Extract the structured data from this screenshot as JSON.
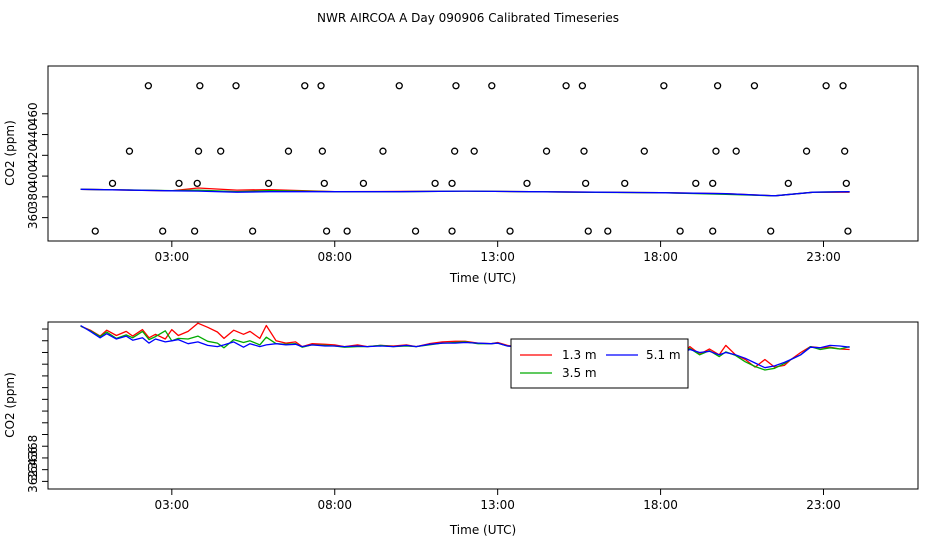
{
  "title": "NWR AIRCOA A  Day 090906  Calibrated Timeseries",
  "chart_data": [
    {
      "type": "scatter+line",
      "xlabel": "Time (UTC)",
      "ylabel": "CO2 (ppm)",
      "xlim": [
        -0.8,
        25.9
      ],
      "ylim": [
        337.5,
        506
      ],
      "x_ticks": [
        3,
        8,
        13,
        18,
        23
      ],
      "x_tick_labels": [
        "03:00",
        "08:00",
        "13:00",
        "18:00",
        "23:00"
      ],
      "y_ticks": [
        360,
        380,
        400,
        420,
        440,
        460
      ],
      "y_tick_labels": [
        "360",
        "",
        "400",
        "",
        "440",
        ""
      ],
      "y_tick_labels_b": [
        "",
        "380",
        "",
        "420",
        "",
        "460"
      ],
      "points": [
        [
          0.65,
          347
        ],
        [
          1.18,
          393
        ],
        [
          1.7,
          424
        ],
        [
          2.28,
          487
        ],
        [
          2.72,
          347
        ],
        [
          3.22,
          393
        ],
        [
          3.7,
          347
        ],
        [
          3.78,
          393
        ],
        [
          3.82,
          424
        ],
        [
          3.86,
          487
        ],
        [
          4.5,
          424
        ],
        [
          4.97,
          487
        ],
        [
          5.48,
          347
        ],
        [
          5.97,
          393
        ],
        [
          6.58,
          424
        ],
        [
          7.08,
          487
        ],
        [
          7.58,
          487
        ],
        [
          7.62,
          424
        ],
        [
          7.68,
          393
        ],
        [
          7.75,
          347
        ],
        [
          8.38,
          347
        ],
        [
          8.88,
          393
        ],
        [
          9.48,
          424
        ],
        [
          9.98,
          487
        ],
        [
          10.48,
          347
        ],
        [
          11.08,
          393
        ],
        [
          11.6,
          393
        ],
        [
          11.6,
          347
        ],
        [
          11.68,
          424
        ],
        [
          11.72,
          487
        ],
        [
          12.28,
          424
        ],
        [
          12.82,
          487
        ],
        [
          13.38,
          347
        ],
        [
          13.9,
          393
        ],
        [
          14.5,
          424
        ],
        [
          15.1,
          487
        ],
        [
          15.6,
          487
        ],
        [
          15.65,
          424
        ],
        [
          15.7,
          393
        ],
        [
          15.78,
          347
        ],
        [
          16.38,
          347
        ],
        [
          16.9,
          393
        ],
        [
          17.5,
          424
        ],
        [
          18.1,
          487
        ],
        [
          18.6,
          347
        ],
        [
          19.08,
          393
        ],
        [
          19.6,
          393
        ],
        [
          19.6,
          347
        ],
        [
          19.7,
          424
        ],
        [
          19.75,
          487
        ],
        [
          20.32,
          424
        ],
        [
          20.88,
          487
        ],
        [
          21.38,
          347
        ],
        [
          21.92,
          393
        ],
        [
          22.48,
          424
        ],
        [
          23.08,
          487
        ],
        [
          23.6,
          487
        ],
        [
          23.65,
          424
        ],
        [
          23.7,
          393
        ],
        [
          23.75,
          347
        ]
      ],
      "series": [
        {
          "name": "1.3 m",
          "color": "#ff0000",
          "x": [
            0.2,
            3.0,
            3.8,
            5.0,
            6.0,
            8.0,
            10.0,
            12.0,
            14.0,
            16.0,
            18.0,
            20.0,
            21.5,
            22.7,
            23.8
          ],
          "values": [
            387.3,
            385.8,
            388.5,
            386.5,
            387.0,
            385.0,
            385.3,
            385.5,
            385.0,
            384.5,
            384.0,
            383.0,
            381.0,
            384.5,
            384.5
          ]
        },
        {
          "name": "3.5 m",
          "color": "#00aa00",
          "x": [
            0.2,
            3.0,
            3.8,
            5.0,
            6.0,
            8.0,
            10.0,
            12.0,
            14.0,
            16.0,
            18.0,
            20.0,
            21.5,
            22.7,
            23.8
          ],
          "values": [
            387.3,
            386.0,
            386.5,
            385.0,
            386.0,
            385.0,
            385.0,
            385.5,
            385.0,
            384.3,
            384.0,
            382.5,
            381.0,
            384.5,
            385.0
          ]
        },
        {
          "name": "5.1 m",
          "color": "#0000ff",
          "x": [
            0.2,
            3.0,
            3.8,
            5.0,
            6.0,
            8.0,
            10.0,
            12.0,
            14.0,
            16.0,
            18.0,
            20.0,
            21.5,
            22.7,
            23.8
          ],
          "values": [
            387.3,
            385.8,
            385.5,
            384.5,
            385.0,
            385.0,
            385.0,
            385.5,
            385.0,
            384.5,
            384.0,
            383.0,
            381.0,
            384.5,
            385.0
          ]
        }
      ]
    },
    {
      "type": "line",
      "xlabel": "Time (UTC)",
      "ylabel": "CO2 (ppm)",
      "xlim": [
        -0.8,
        25.9
      ],
      "ylim": [
        360.7,
        389.2
      ],
      "x_ticks": [
        3,
        8,
        13,
        18,
        23
      ],
      "x_tick_labels": [
        "03:00",
        "08:00",
        "13:00",
        "18:00",
        "23:00"
      ],
      "y_ticks": [
        362,
        364,
        366,
        368
      ],
      "y_tick_labels": [
        "362",
        "",
        "366",
        ""
      ],
      "y_tick_labels_b": [
        "",
        "384",
        "",
        "388"
      ],
      "legend_position": "top-center-right",
      "legend": [
        "1.3 m",
        "3.5 m",
        "5.1 m"
      ],
      "series": [
        {
          "name": "1.3 m",
          "color": "#ff0000",
          "x": [
            0.2,
            0.5,
            0.8,
            1.0,
            1.3,
            1.6,
            1.8,
            2.1,
            2.3,
            2.5,
            2.8,
            3.0,
            3.2,
            3.5,
            3.8,
            4.1,
            4.4,
            4.6,
            4.9,
            5.2,
            5.4,
            5.7,
            5.9,
            6.2,
            6.5,
            6.8,
            7.0,
            7.3,
            7.7,
            8.0,
            8.3,
            8.7,
            9.0,
            9.4,
            9.8,
            10.2,
            10.5,
            10.9,
            11.3,
            11.7,
            12.0,
            12.4,
            12.8,
            13.0,
            13.3,
            13.6,
            14.0,
            14.3,
            14.6,
            15.0,
            15.3,
            15.6,
            16.0,
            16.3,
            16.6,
            17.0,
            17.3,
            17.6,
            18.0,
            18.3,
            18.6,
            18.9,
            19.2,
            19.5,
            19.8,
            20.0,
            20.3,
            20.6,
            20.9,
            21.2,
            21.5,
            21.8,
            22.0,
            22.3,
            22.6,
            22.9,
            23.2,
            23.5,
            23.8
          ],
          "values": [
            388.5,
            387.8,
            386.8,
            387.8,
            386.9,
            387.6,
            386.8,
            387.9,
            386.5,
            387.1,
            386.3,
            387.9,
            386.9,
            387.6,
            389.0,
            388.3,
            387.5,
            386.4,
            387.8,
            387.1,
            387.6,
            386.4,
            388.6,
            386.0,
            385.6,
            385.8,
            385.0,
            385.5,
            385.4,
            385.3,
            385.0,
            385.3,
            385.0,
            385.2,
            385.1,
            385.3,
            385.0,
            385.5,
            385.8,
            385.9,
            385.9,
            385.6,
            385.5,
            385.7,
            385.2,
            385.0,
            385.3,
            384.2,
            384.6,
            384.5,
            384.8,
            384.3,
            384.7,
            384.0,
            384.8,
            383.9,
            384.8,
            384.2,
            382.8,
            384.4,
            383.3,
            385.0,
            383.7,
            384.6,
            383.6,
            385.2,
            383.6,
            382.8,
            381.5,
            382.8,
            381.5,
            381.8,
            382.8,
            384.0,
            385.0,
            384.8,
            384.9,
            384.6,
            384.5
          ]
        },
        {
          "name": "3.5 m",
          "color": "#00aa00",
          "x": [
            0.2,
            0.5,
            0.8,
            1.0,
            1.3,
            1.6,
            1.8,
            2.1,
            2.3,
            2.5,
            2.8,
            3.0,
            3.2,
            3.5,
            3.8,
            4.1,
            4.4,
            4.6,
            4.9,
            5.2,
            5.4,
            5.7,
            5.9,
            6.2,
            6.5,
            6.8,
            7.0,
            7.3,
            7.7,
            8.0,
            8.3,
            8.7,
            9.0,
            9.4,
            9.8,
            10.2,
            10.5,
            10.9,
            11.3,
            11.7,
            12.0,
            12.4,
            12.8,
            13.0,
            13.3,
            13.6,
            14.0,
            14.3,
            14.6,
            15.0,
            15.3,
            15.6,
            16.0,
            16.3,
            16.6,
            17.0,
            17.3,
            17.6,
            18.0,
            18.3,
            18.6,
            18.9,
            19.2,
            19.5,
            19.8,
            20.0,
            20.3,
            20.6,
            20.9,
            21.2,
            21.5,
            21.8,
            22.0,
            22.3,
            22.6,
            22.9,
            23.2,
            23.5,
            23.8
          ],
          "values": [
            388.5,
            387.7,
            386.7,
            387.5,
            386.4,
            387.0,
            386.5,
            387.6,
            386.2,
            386.7,
            387.7,
            386.0,
            386.4,
            386.3,
            386.8,
            385.9,
            385.6,
            384.8,
            386.2,
            385.7,
            386.0,
            385.3,
            386.6,
            385.5,
            385.4,
            385.5,
            384.9,
            385.3,
            385.2,
            385.1,
            384.9,
            385.0,
            385.0,
            385.2,
            385.0,
            385.1,
            385.0,
            385.3,
            385.6,
            385.7,
            385.8,
            385.5,
            385.5,
            385.6,
            385.1,
            385.0,
            385.1,
            384.3,
            384.5,
            384.5,
            384.4,
            384.2,
            384.4,
            384.1,
            384.5,
            384.0,
            384.6,
            384.2,
            383.6,
            384.4,
            383.5,
            384.7,
            383.6,
            384.3,
            383.3,
            384.1,
            383.5,
            382.4,
            381.6,
            381.0,
            381.3,
            382.1,
            382.8,
            383.6,
            385.0,
            384.5,
            384.8,
            384.6,
            385.0
          ]
        },
        {
          "name": "5.1 m",
          "color": "#0000ff",
          "x": [
            0.2,
            0.5,
            0.8,
            1.0,
            1.3,
            1.6,
            1.8,
            2.1,
            2.3,
            2.5,
            2.8,
            3.0,
            3.2,
            3.5,
            3.8,
            4.1,
            4.4,
            4.6,
            4.9,
            5.2,
            5.4,
            5.7,
            5.9,
            6.2,
            6.5,
            6.8,
            7.0,
            7.3,
            7.7,
            8.0,
            8.3,
            8.7,
            9.0,
            9.4,
            9.8,
            10.2,
            10.5,
            10.9,
            11.3,
            11.7,
            12.0,
            12.4,
            12.8,
            13.0,
            13.3,
            13.6,
            14.0,
            14.3,
            14.6,
            15.0,
            15.3,
            15.6,
            16.0,
            16.3,
            16.6,
            17.0,
            17.3,
            17.6,
            18.0,
            18.3,
            18.6,
            18.9,
            19.2,
            19.5,
            19.8,
            20.0,
            20.3,
            20.6,
            20.9,
            21.2,
            21.5,
            21.8,
            22.0,
            22.3,
            22.6,
            22.9,
            23.2,
            23.5,
            23.8
          ],
          "values": [
            388.6,
            387.6,
            386.5,
            387.2,
            386.3,
            386.8,
            386.1,
            386.5,
            385.6,
            386.3,
            385.8,
            386.0,
            386.2,
            385.5,
            385.8,
            385.2,
            385.0,
            385.3,
            385.8,
            384.9,
            385.5,
            385.0,
            385.3,
            385.5,
            385.3,
            385.4,
            385.0,
            385.3,
            385.1,
            385.1,
            385.0,
            385.1,
            385.0,
            385.1,
            385.0,
            385.2,
            385.0,
            385.4,
            385.6,
            385.6,
            385.7,
            385.6,
            385.5,
            385.6,
            385.1,
            385.0,
            385.2,
            384.7,
            384.6,
            384.5,
            384.5,
            384.4,
            384.5,
            384.2,
            384.6,
            384.1,
            384.6,
            384.4,
            384.0,
            384.3,
            383.8,
            384.5,
            384.0,
            384.2,
            383.6,
            384.0,
            383.6,
            383.0,
            382.2,
            381.4,
            381.7,
            382.3,
            382.8,
            383.6,
            384.9,
            384.8,
            385.2,
            385.1,
            384.9
          ]
        }
      ]
    }
  ]
}
